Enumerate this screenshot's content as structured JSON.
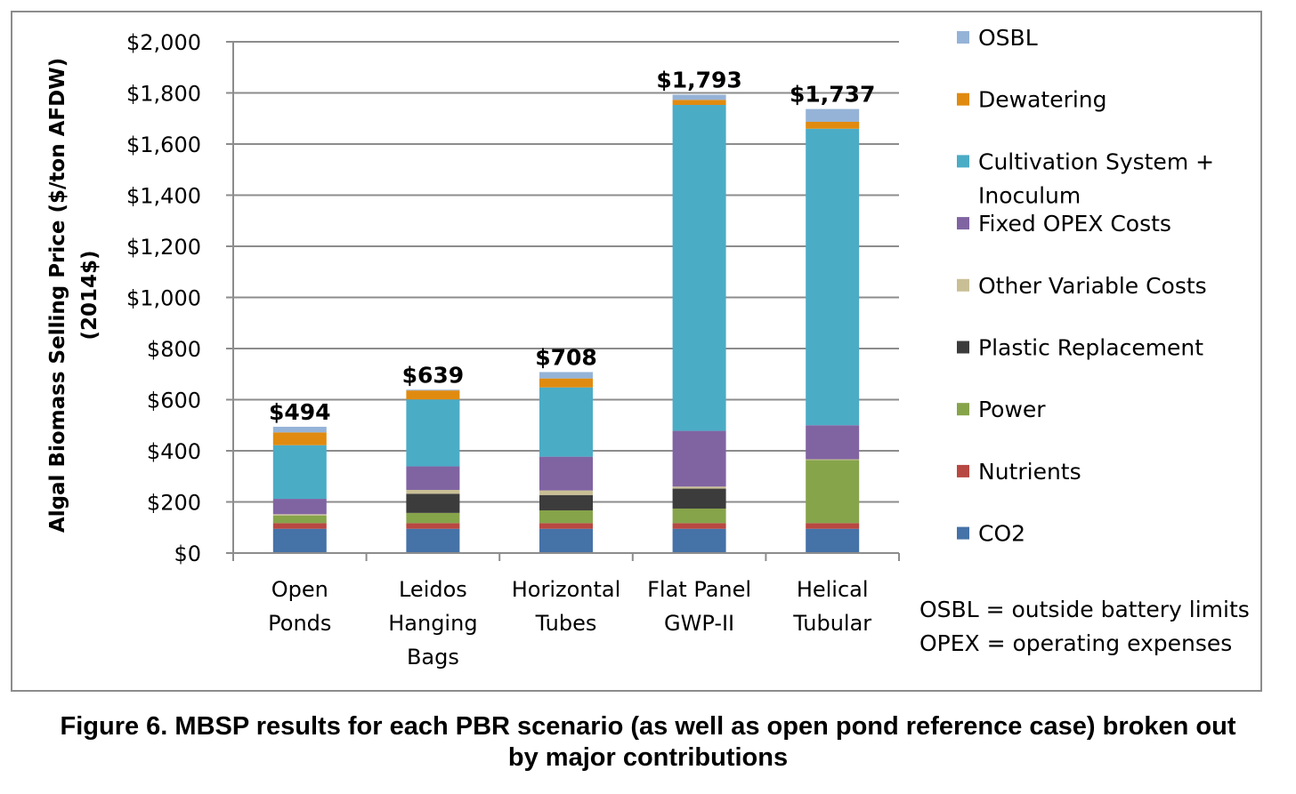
{
  "chart_data": {
    "type": "bar",
    "stacked": true,
    "ylabel_lines": [
      "Algal Biomass Selling Price ($/ton AFDW)",
      "(2014$)"
    ],
    "ylim": [
      0,
      2000
    ],
    "yticks": [
      0,
      200,
      400,
      600,
      800,
      1000,
      1200,
      1400,
      1600,
      1800,
      2000
    ],
    "ytick_labels": [
      "$0",
      "$200",
      "$400",
      "$600",
      "$800",
      "$1,000",
      "$1,200",
      "$1,400",
      "$1,600",
      "$1,800",
      "$2,000"
    ],
    "grid": true,
    "categories": [
      [
        "Open",
        "Ponds"
      ],
      [
        "Leidos",
        "Hanging",
        "Bags"
      ],
      [
        "Horizontal",
        "Tubes"
      ],
      [
        "Flat Panel",
        "GWP-II"
      ],
      [
        "Helical",
        "Tubular"
      ]
    ],
    "totals": [
      "$494",
      "$639",
      "$708",
      "$1,793",
      "$1,737"
    ],
    "series": [
      {
        "name": "CO2",
        "color": "#4572a7",
        "values": [
          95,
          95,
          95,
          95,
          95
        ]
      },
      {
        "name": "Nutrients",
        "color": "#b84842",
        "values": [
          22,
          22,
          22,
          22,
          22
        ]
      },
      {
        "name": "Power",
        "color": "#86a44a",
        "values": [
          30,
          40,
          50,
          57,
          247
        ]
      },
      {
        "name": "Plastic Replacement",
        "color": "#3c3c3c",
        "values": [
          0,
          75,
          60,
          78,
          0
        ]
      },
      {
        "name": "Other Variable Costs",
        "color": "#c9bf96",
        "values": [
          5,
          15,
          18,
          8,
          3
        ]
      },
      {
        "name": "Fixed OPEX Costs",
        "color": "#8064a2",
        "values": [
          60,
          92,
          132,
          218,
          133
        ]
      },
      {
        "name": "Cultivation System + Inoculum",
        "color": "#4bacc6",
        "values": [
          210,
          262,
          271,
          1275,
          1160
        ]
      },
      {
        "name": "Dewatering",
        "color": "#e08b10",
        "values": [
          50,
          35,
          35,
          20,
          27
        ]
      },
      {
        "name": "OSBL",
        "color": "#95b3d7",
        "values": [
          22,
          3,
          25,
          20,
          50
        ]
      }
    ],
    "legend": [
      {
        "name": [
          "OSBL"
        ],
        "color": "#95b3d7"
      },
      {
        "name": [
          "Dewatering"
        ],
        "color": "#e08b10"
      },
      {
        "name": [
          "Cultivation System +",
          "Inoculum"
        ],
        "color": "#4bacc6"
      },
      {
        "name": [
          "Fixed OPEX Costs"
        ],
        "color": "#8064a2"
      },
      {
        "name": [
          "Other Variable Costs"
        ],
        "color": "#c9bf96"
      },
      {
        "name": [
          "Plastic Replacement"
        ],
        "color": "#3c3c3c"
      },
      {
        "name": [
          "Power"
        ],
        "color": "#86a44a"
      },
      {
        "name": [
          "Nutrients"
        ],
        "color": "#b84842"
      },
      {
        "name": [
          "CO2"
        ],
        "color": "#4572a7"
      }
    ],
    "legend_position": "right",
    "notes": [
      "OSBL = outside battery limits",
      "OPEX = operating expenses"
    ]
  },
  "caption": {
    "line1": "Figure 6. MBSP results for each PBR scenario (as well as open pond reference case) broken out",
    "line2": "by major contributions"
  }
}
